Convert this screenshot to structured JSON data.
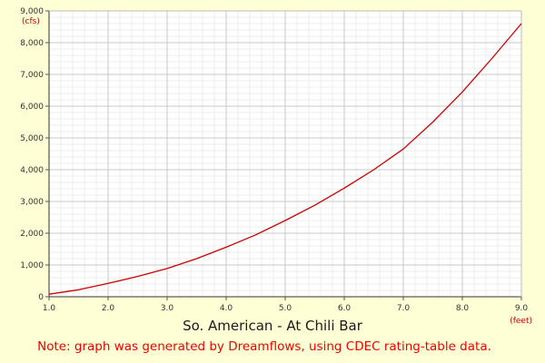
{
  "colors": {
    "background": "#ffffd5",
    "plot_background": "#ffffff",
    "major_grid": "#c8c8c8",
    "minor_grid": "#ececec",
    "series": "#cc0000",
    "unit_label": "#cc0000",
    "note": "#ee0000",
    "title": "#1a1a1a"
  },
  "chart_data": {
    "type": "line",
    "title": "So. American - At Chili Bar",
    "note": "Note: graph was generated by Dreamflows, using CDEC rating-table data.",
    "xlabel": "(feet)",
    "ylabel": "(cfs)",
    "xlim": [
      1.0,
      9.0
    ],
    "ylim": [
      0,
      9000
    ],
    "x_ticks": [
      1.0,
      2.0,
      3.0,
      4.0,
      5.0,
      6.0,
      7.0,
      8.0,
      9.0
    ],
    "x_tick_labels": [
      "1.0",
      "2.0",
      "3.0",
      "4.0",
      "5.0",
      "6.0",
      "7.0",
      "8.0",
      "9.0"
    ],
    "y_ticks": [
      0,
      1000,
      2000,
      3000,
      4000,
      5000,
      6000,
      7000,
      8000,
      9000
    ],
    "y_tick_labels": [
      "0",
      "1,000",
      "2,000",
      "3,000",
      "4,000",
      "5,000",
      "6,000",
      "7,000",
      "8,000",
      "9,000"
    ],
    "grid": true,
    "minor_grid": true,
    "series": [
      {
        "color": "#cc0000",
        "x": [
          1.0,
          1.5,
          2.0,
          2.5,
          3.0,
          3.5,
          4.0,
          4.5,
          5.0,
          5.5,
          6.0,
          6.5,
          7.0,
          7.5,
          8.0,
          8.5,
          9.0
        ],
        "y": [
          80,
          220,
          420,
          640,
          890,
          1200,
          1560,
          1950,
          2400,
          2880,
          3420,
          4000,
          4650,
          5500,
          6450,
          7500,
          8600
        ]
      }
    ]
  }
}
